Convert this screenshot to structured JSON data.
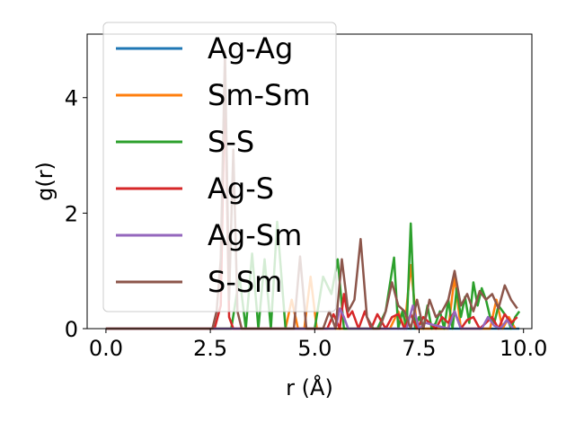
{
  "chart_data": {
    "type": "line",
    "xlabel": "r (Å)",
    "ylabel": "g(r)",
    "xlim": [
      -0.45,
      10.2
    ],
    "ylim": [
      0,
      5.1
    ],
    "xticks": [
      0.0,
      2.5,
      5.0,
      7.5,
      10.0
    ],
    "xtick_labels": [
      "0.0",
      "2.5",
      "5.0",
      "7.5",
      "10.0"
    ],
    "yticks": [
      0,
      2,
      4
    ],
    "ytick_labels": [
      "0",
      "2",
      "4"
    ],
    "grid": false,
    "legend_position": "upper-left",
    "series": [
      {
        "name": "Ag-Ag",
        "color": "#1f77b4",
        "x": [
          0.0,
          2.5,
          5.0,
          6.8,
          7.0,
          7.2,
          7.4,
          8.0,
          8.4,
          8.6,
          9.0,
          9.3,
          9.6,
          9.9
        ],
        "y": [
          0.0,
          0.0,
          0.0,
          0.0,
          0.0,
          0.0,
          0.0,
          0.0,
          0.0,
          0.0,
          0.0,
          0.0,
          0.0,
          0.0
        ]
      },
      {
        "name": "Sm-Sm",
        "color": "#ff7f0e",
        "x": [
          0.0,
          4.3,
          4.45,
          4.6,
          4.75,
          4.9,
          5.05,
          5.2,
          6.8,
          7.0,
          7.15,
          7.3,
          7.45,
          7.6,
          8.2,
          8.35,
          8.5,
          8.65,
          9.2,
          9.35,
          9.5,
          9.65,
          9.8
        ],
        "y": [
          0.0,
          0.0,
          0.5,
          0.0,
          0.0,
          0.9,
          0.0,
          0.0,
          0.0,
          0.3,
          0.0,
          1.1,
          0.0,
          0.0,
          0.0,
          0.9,
          0.0,
          0.0,
          0.0,
          0.5,
          0.0,
          0.2,
          0.0
        ]
      },
      {
        "name": "S-S",
        "color": "#2ca02c",
        "x": [
          0.0,
          3.0,
          3.2,
          3.35,
          3.5,
          3.65,
          3.8,
          3.95,
          4.1,
          4.3,
          4.5,
          5.0,
          5.2,
          5.4,
          5.55,
          5.7,
          6.0,
          6.5,
          6.7,
          6.9,
          7.0,
          7.1,
          7.2,
          7.3,
          7.4,
          7.5,
          7.6,
          7.7,
          7.8,
          7.9,
          8.0,
          8.1,
          8.2,
          8.3,
          8.4,
          8.5,
          8.6,
          8.7,
          8.8,
          8.9,
          9.0,
          9.1,
          9.2,
          9.3,
          9.4,
          9.5,
          9.6,
          9.7,
          9.8,
          9.9
        ],
        "y": [
          0.0,
          0.0,
          0.9,
          0.0,
          1.3,
          0.0,
          1.2,
          0.0,
          1.85,
          0.0,
          0.0,
          0.0,
          0.9,
          0.6,
          1.2,
          0.0,
          0.0,
          0.0,
          0.3,
          1.23,
          0.0,
          0.3,
          0.0,
          1.82,
          0.0,
          0.2,
          0.0,
          0.4,
          0.0,
          0.1,
          0.3,
          0.0,
          0.5,
          0.0,
          0.7,
          0.2,
          0.55,
          0.1,
          0.8,
          0.4,
          0.7,
          0.5,
          0.2,
          0.1,
          0.4,
          0.3,
          0.2,
          0.0,
          0.2,
          0.3
        ]
      },
      {
        "name": "Ag-S",
        "color": "#d62728",
        "x": [
          0.0,
          2.5,
          2.6,
          2.75,
          2.85,
          2.95,
          3.05,
          3.2,
          5.3,
          5.45,
          5.6,
          5.7,
          5.8,
          5.9,
          6.05,
          6.2,
          6.35,
          6.5,
          6.7,
          6.85,
          7.0,
          7.15,
          7.3,
          7.45,
          7.6,
          7.75,
          7.9,
          8.05,
          8.2,
          8.35,
          8.5,
          8.65,
          8.8,
          8.95,
          9.1,
          9.25,
          9.4,
          9.55,
          9.7,
          9.85
        ],
        "y": [
          0.0,
          0.0,
          0.0,
          0.4,
          4.3,
          0.2,
          0.0,
          0.0,
          0.0,
          0.25,
          0.0,
          0.6,
          0.2,
          0.3,
          0.0,
          0.3,
          0.0,
          0.25,
          0.0,
          0.2,
          0.25,
          0.0,
          0.25,
          0.0,
          0.2,
          0.1,
          0.0,
          0.2,
          0.1,
          0.3,
          0.0,
          0.15,
          0.2,
          0.0,
          0.1,
          0.2,
          0.0,
          0.25,
          0.1,
          0.2
        ]
      },
      {
        "name": "Ag-Sm",
        "color": "#9467bd",
        "x": [
          0.0,
          2.5,
          5.5,
          5.6,
          5.7,
          5.8,
          7.2,
          7.35,
          7.5,
          7.65,
          8.2,
          8.35,
          8.5,
          9.0,
          9.15,
          9.3,
          9.45,
          9.6,
          9.75
        ],
        "y": [
          0.0,
          0.0,
          0.0,
          0.35,
          0.2,
          0.0,
          0.0,
          0.4,
          0.0,
          0.1,
          0.0,
          0.3,
          0.0,
          0.0,
          0.2,
          0.05,
          0.0,
          0.15,
          0.0
        ]
      },
      {
        "name": "S-Sm",
        "color": "#8c564b",
        "x": [
          0.0,
          2.55,
          2.65,
          2.75,
          2.85,
          2.95,
          3.05,
          3.15,
          3.25,
          4.5,
          4.65,
          4.8,
          5.0,
          5.2,
          5.35,
          5.5,
          5.65,
          5.8,
          5.95,
          6.1,
          6.25,
          6.4,
          6.55,
          6.7,
          6.85,
          7.0,
          7.15,
          7.3,
          7.45,
          7.6,
          7.75,
          7.9,
          8.05,
          8.2,
          8.35,
          8.5,
          8.65,
          8.8,
          8.95,
          9.1,
          9.25,
          9.4,
          9.55,
          9.7,
          9.85
        ],
        "y": [
          0.0,
          0.0,
          0.3,
          1.2,
          4.8,
          0.5,
          3.1,
          0.3,
          0.0,
          0.0,
          1.25,
          0.0,
          0.0,
          0.0,
          0.3,
          0.0,
          1.2,
          0.3,
          0.5,
          1.55,
          0.2,
          0.0,
          0.0,
          0.3,
          0.8,
          0.4,
          0.3,
          0.0,
          0.5,
          0.0,
          0.5,
          0.2,
          0.3,
          0.5,
          1.0,
          0.4,
          0.6,
          0.3,
          0.65,
          0.5,
          0.6,
          0.35,
          0.75,
          0.5,
          0.35
        ]
      }
    ]
  }
}
